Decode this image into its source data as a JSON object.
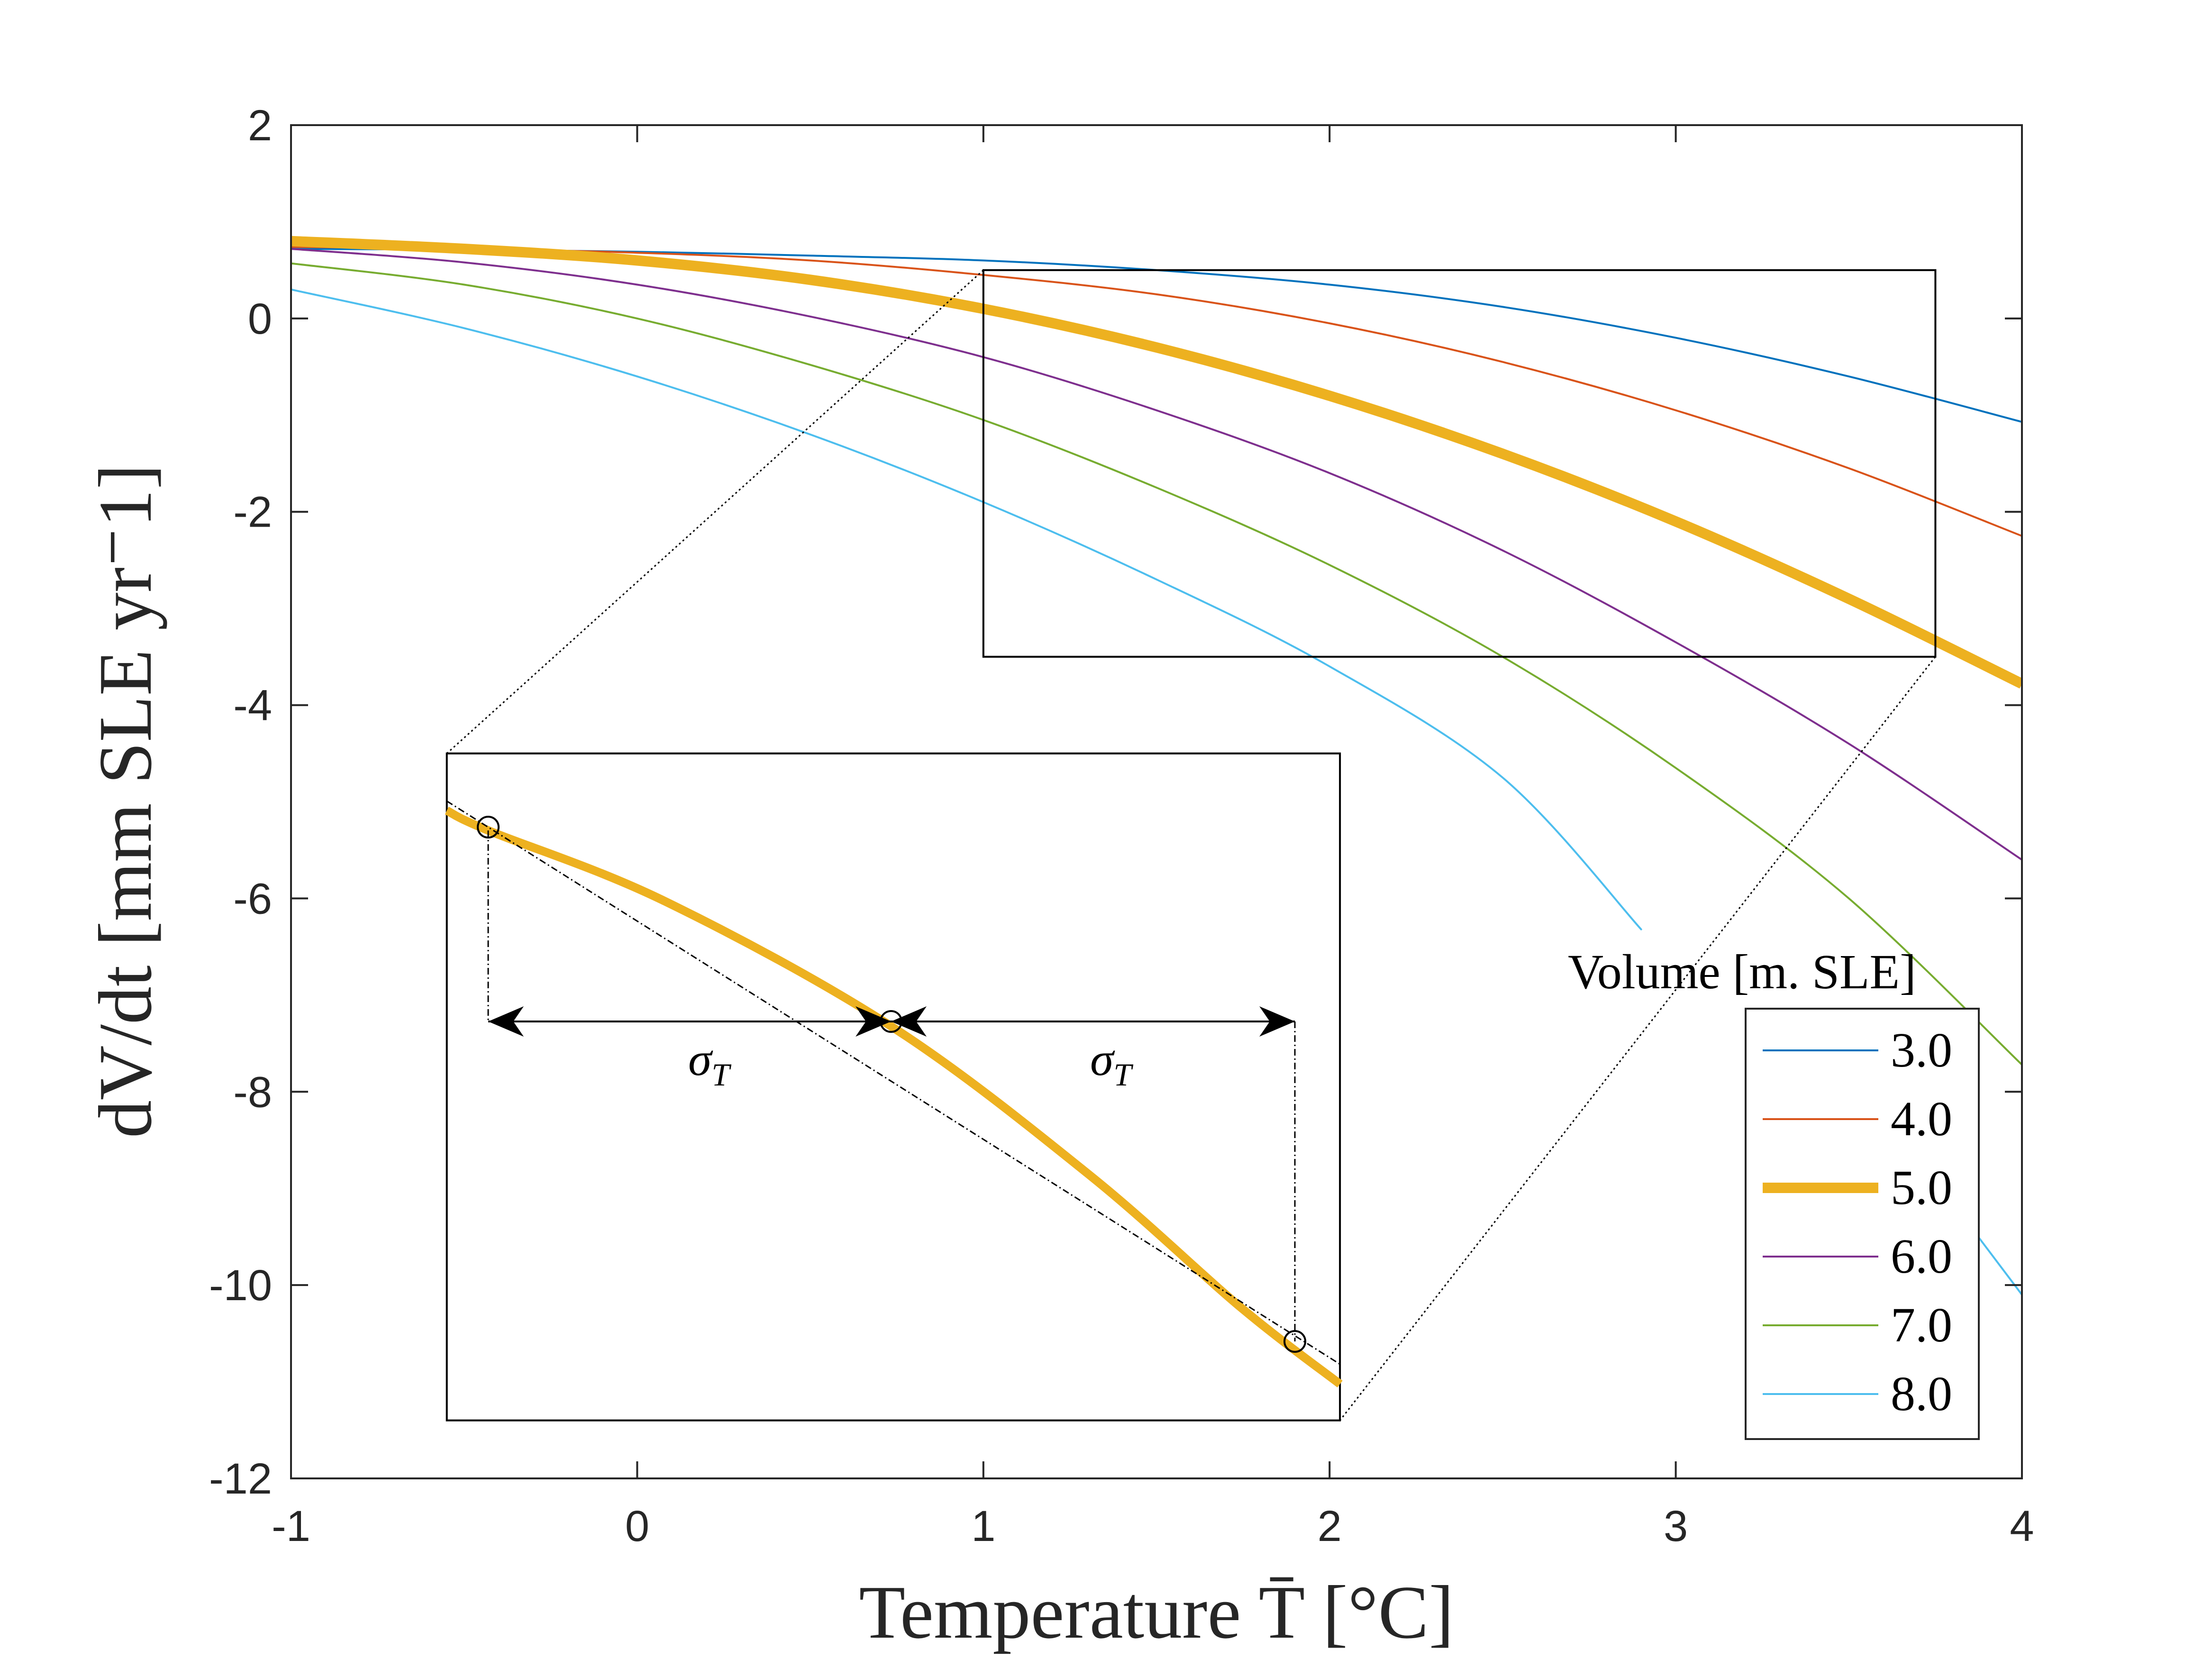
{
  "chart_data": {
    "type": "line",
    "xlabel": "Temperature T̄ [°C]",
    "ylabel": "dV/dt [mm SLE yr⁻1]",
    "xlim": [
      -1,
      4
    ],
    "ylim": [
      -12,
      2
    ],
    "xticks": [
      -1,
      0,
      1,
      2,
      3,
      4
    ],
    "yticks": [
      2,
      0,
      -2,
      -4,
      -6,
      -8,
      -10,
      -12
    ],
    "legend": {
      "title": "Volume [m. SLE]",
      "placement": "bottom-right"
    },
    "series": [
      {
        "name": "3.0",
        "color": "#0072BD",
        "width": 4,
        "x": [
          -1,
          -0.5,
          0,
          0.5,
          1,
          1.5,
          2,
          2.5,
          3,
          3.5,
          4
        ],
        "y": [
          0.72,
          0.71,
          0.69,
          0.65,
          0.6,
          0.5,
          0.35,
          0.12,
          -0.2,
          -0.6,
          -1.07
        ]
      },
      {
        "name": "4.0",
        "color": "#D95319",
        "width": 4,
        "x": [
          -1,
          -0.5,
          0,
          0.5,
          1,
          1.5,
          2,
          2.5,
          3,
          3.5,
          4
        ],
        "y": [
          0.74,
          0.72,
          0.68,
          0.6,
          0.45,
          0.25,
          -0.05,
          -0.45,
          -0.95,
          -1.55,
          -2.25
        ]
      },
      {
        "name": "5.0",
        "color": "#EDB120",
        "width": 22,
        "x": [
          -1,
          -0.5,
          0,
          0.5,
          1,
          1.5,
          2,
          2.5,
          3,
          3.5,
          4
        ],
        "y": [
          0.8,
          0.72,
          0.6,
          0.4,
          0.1,
          -0.3,
          -0.8,
          -1.4,
          -2.1,
          -2.9,
          -3.78
        ]
      },
      {
        "name": "6.0",
        "color": "#7E2F8E",
        "width": 4,
        "x": [
          -1,
          -0.5,
          0,
          0.5,
          1,
          1.5,
          2,
          2.5,
          3,
          3.5,
          4
        ],
        "y": [
          0.72,
          0.58,
          0.35,
          0.02,
          -0.4,
          -0.95,
          -1.6,
          -2.4,
          -3.35,
          -4.4,
          -5.6
        ]
      },
      {
        "name": "7.0",
        "color": "#77AC30",
        "width": 4,
        "x": [
          -1,
          -0.5,
          0,
          0.5,
          1,
          1.5,
          2,
          2.5,
          3,
          3.5,
          4
        ],
        "y": [
          0.57,
          0.35,
          0.0,
          -0.48,
          -1.05,
          -1.75,
          -2.55,
          -3.5,
          -4.65,
          -6.0,
          -7.72
        ]
      },
      {
        "name": "8.0",
        "color": "#4DBEEE",
        "width": 4,
        "x": [
          -1,
          -0.5,
          0,
          0.5,
          1,
          1.5,
          2,
          2.5,
          2.9,
          3.6,
          4
        ],
        "y": [
          0.3,
          -0.1,
          -0.6,
          -1.2,
          -1.9,
          -2.7,
          -3.6,
          -4.75,
          -6.32,
          -8.2,
          -10.1
        ]
      }
    ],
    "zoom_box": {
      "x": [
        1,
        3.75
      ],
      "y": [
        -3.5,
        0.5
      ]
    },
    "inset": {
      "box": {
        "x": [
          -0.55,
          2.03
        ],
        "y": [
          -11.4,
          -4.5
        ]
      },
      "markers": [
        "left",
        "center",
        "right"
      ],
      "arrow_label": "σ",
      "arrow_label_sub": "T"
    }
  }
}
